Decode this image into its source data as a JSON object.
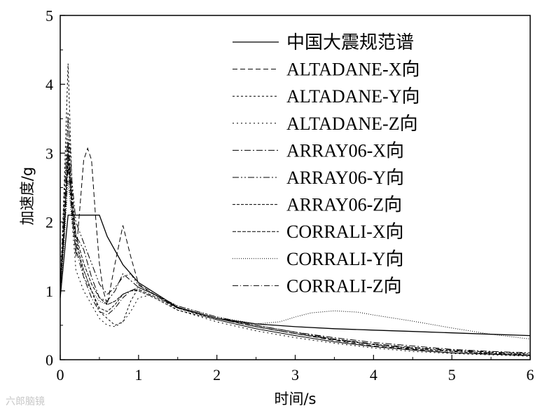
{
  "chart_data": {
    "type": "line",
    "title": "",
    "xlabel": "时间/s",
    "ylabel": "加速度/g",
    "xlim": [
      0,
      6
    ],
    "ylim": [
      0,
      5
    ],
    "xticks": [
      0,
      1,
      2,
      3,
      4,
      5,
      6
    ],
    "yticks": [
      0,
      1,
      2,
      3,
      4,
      5
    ],
    "grid": false,
    "legend_position": "top-right",
    "series": [
      {
        "name": "中国大震规范谱",
        "dash": "none",
        "x": [
          0,
          0.1,
          0.5,
          0.6,
          0.8,
          1.0,
          1.5,
          2.0,
          2.5,
          3.0,
          3.5,
          4.0,
          4.5,
          5.0,
          5.5,
          6.0
        ],
        "y": [
          0.9,
          2.1,
          2.1,
          1.79,
          1.38,
          1.12,
          0.76,
          0.6,
          0.52,
          0.48,
          0.45,
          0.43,
          0.41,
          0.39,
          0.37,
          0.35
        ]
      },
      {
        "name": "ALTADANE-X向",
        "dash": "7,4",
        "x": [
          0,
          0.05,
          0.1,
          0.15,
          0.2,
          0.25,
          0.3,
          0.35,
          0.4,
          0.45,
          0.5,
          0.55,
          0.6,
          0.7,
          0.8,
          0.9,
          1.0,
          1.2,
          1.5,
          2.0,
          2.5,
          3.0,
          3.5,
          4.0,
          4.5,
          5.0,
          5.5,
          6.0
        ],
        "y": [
          1.0,
          1.8,
          3.1,
          2.2,
          1.5,
          2.2,
          2.9,
          3.07,
          2.9,
          2.1,
          1.4,
          1.0,
          0.8,
          1.4,
          1.95,
          1.5,
          1.1,
          0.95,
          0.75,
          0.6,
          0.48,
          0.38,
          0.28,
          0.2,
          0.15,
          0.1,
          0.08,
          0.06
        ]
      },
      {
        "name": "ALTADANE-Y向",
        "dash": "3,3",
        "x": [
          0,
          0.05,
          0.1,
          0.15,
          0.2,
          0.25,
          0.3,
          0.4,
          0.5,
          0.6,
          0.7,
          0.8,
          0.9,
          1.0,
          1.2,
          1.5,
          2.0,
          2.5,
          3.0,
          3.5,
          4.0,
          4.5,
          5.0,
          5.5,
          6.0
        ],
        "y": [
          1.0,
          2.5,
          4.3,
          2.5,
          1.8,
          1.5,
          1.2,
          1.0,
          0.7,
          0.6,
          0.5,
          0.55,
          0.85,
          1.05,
          0.95,
          0.75,
          0.58,
          0.45,
          0.35,
          0.26,
          0.19,
          0.14,
          0.1,
          0.08,
          0.06
        ]
      },
      {
        "name": "ALTADANE-Z向",
        "dash": "2,4",
        "x": [
          0,
          0.05,
          0.1,
          0.15,
          0.2,
          0.3,
          0.4,
          0.5,
          0.6,
          0.7,
          0.8,
          0.9,
          1.0,
          1.2,
          1.5,
          2.0,
          2.5,
          3.0,
          3.5,
          4.0,
          4.5,
          5.0,
          5.5,
          6.0
        ],
        "y": [
          1.0,
          2.2,
          3.6,
          2.0,
          1.3,
          1.0,
          0.8,
          0.6,
          0.5,
          0.48,
          0.55,
          0.7,
          0.9,
          0.95,
          0.72,
          0.55,
          0.42,
          0.32,
          0.24,
          0.17,
          0.12,
          0.09,
          0.07,
          0.05
        ]
      },
      {
        "name": "ARRAY06-X向",
        "dash": "9,3,2,3",
        "x": [
          0,
          0.05,
          0.1,
          0.15,
          0.2,
          0.3,
          0.4,
          0.5,
          0.6,
          0.7,
          0.8,
          0.9,
          1.0,
          1.2,
          1.5,
          2.0,
          2.5,
          3.0,
          3.5,
          4.0,
          4.5,
          5.0,
          5.5,
          6.0
        ],
        "y": [
          1.0,
          2.0,
          3.2,
          2.4,
          1.8,
          1.6,
          1.2,
          0.9,
          0.85,
          1.0,
          1.25,
          1.15,
          1.05,
          0.95,
          0.75,
          0.6,
          0.5,
          0.4,
          0.32,
          0.25,
          0.2,
          0.15,
          0.12,
          0.1
        ]
      },
      {
        "name": "ARRAY06-Y向",
        "dash": "9,3,2,3,2,3",
        "x": [
          0,
          0.05,
          0.1,
          0.15,
          0.2,
          0.3,
          0.4,
          0.5,
          0.6,
          0.7,
          0.8,
          0.9,
          1.0,
          1.2,
          1.5,
          2.0,
          2.5,
          3.0,
          3.5,
          4.0,
          4.5,
          5.0,
          5.5,
          6.0
        ],
        "y": [
          1.0,
          2.3,
          3.5,
          2.6,
          2.0,
          1.7,
          1.4,
          1.1,
          0.95,
          1.05,
          1.2,
          1.25,
          1.08,
          0.95,
          0.78,
          0.62,
          0.5,
          0.4,
          0.3,
          0.22,
          0.17,
          0.13,
          0.1,
          0.08
        ]
      },
      {
        "name": "ARRAY06-Z向",
        "dash": "4,2",
        "x": [
          0,
          0.05,
          0.1,
          0.15,
          0.2,
          0.3,
          0.4,
          0.5,
          0.6,
          0.7,
          0.8,
          0.9,
          1.0,
          1.2,
          1.5,
          2.0,
          2.5,
          3.0,
          3.5,
          4.0,
          4.5,
          5.0,
          5.5,
          6.0
        ],
        "y": [
          1.0,
          1.9,
          2.9,
          2.2,
          1.7,
          1.3,
          1.0,
          0.75,
          0.7,
          0.8,
          0.95,
          1.0,
          1.0,
          0.9,
          0.72,
          0.58,
          0.45,
          0.35,
          0.26,
          0.19,
          0.14,
          0.1,
          0.08,
          0.06
        ]
      },
      {
        "name": "CORRALI-X向",
        "dash": "5,2",
        "x": [
          0,
          0.05,
          0.1,
          0.15,
          0.2,
          0.3,
          0.4,
          0.5,
          0.6,
          0.7,
          0.8,
          0.9,
          1.0,
          1.2,
          1.5,
          2.0,
          2.5,
          3.0,
          3.5,
          4.0,
          4.5,
          5.0,
          5.5,
          6.0
        ],
        "y": [
          1.0,
          2.0,
          3.0,
          2.3,
          1.8,
          1.4,
          1.1,
          0.9,
          0.8,
          0.85,
          0.95,
          1.0,
          1.02,
          0.92,
          0.75,
          0.6,
          0.48,
          0.38,
          0.29,
          0.22,
          0.16,
          0.12,
          0.09,
          0.07
        ]
      },
      {
        "name": "CORRALI-Y向",
        "dash": "1,2",
        "x": [
          0,
          0.05,
          0.1,
          0.15,
          0.2,
          0.3,
          0.4,
          0.5,
          0.6,
          0.7,
          0.8,
          0.9,
          1.0,
          1.2,
          1.5,
          2.0,
          2.5,
          2.8,
          3.0,
          3.2,
          3.5,
          3.8,
          4.0,
          4.5,
          5.0,
          5.5,
          6.0
        ],
        "y": [
          1.0,
          1.7,
          2.6,
          2.0,
          1.6,
          1.3,
          1.0,
          0.85,
          0.8,
          0.85,
          0.95,
          1.0,
          1.05,
          0.95,
          0.78,
          0.62,
          0.52,
          0.55,
          0.62,
          0.68,
          0.71,
          0.69,
          0.65,
          0.56,
          0.46,
          0.37,
          0.3
        ]
      },
      {
        "name": "CORRALI-Z向",
        "dash": "8,3,1,3",
        "x": [
          0,
          0.05,
          0.1,
          0.15,
          0.2,
          0.3,
          0.4,
          0.5,
          0.6,
          0.7,
          0.8,
          0.9,
          1.0,
          1.2,
          1.5,
          2.0,
          2.5,
          3.0,
          3.5,
          4.0,
          4.5,
          5.0,
          5.5,
          6.0
        ],
        "y": [
          1.0,
          1.8,
          2.8,
          2.1,
          1.6,
          1.2,
          0.9,
          0.7,
          0.65,
          0.75,
          0.9,
          1.0,
          1.05,
          0.95,
          0.76,
          0.6,
          0.48,
          0.38,
          0.3,
          0.23,
          0.18,
          0.14,
          0.11,
          0.09
        ]
      }
    ]
  },
  "watermark": "六郎脑镜"
}
